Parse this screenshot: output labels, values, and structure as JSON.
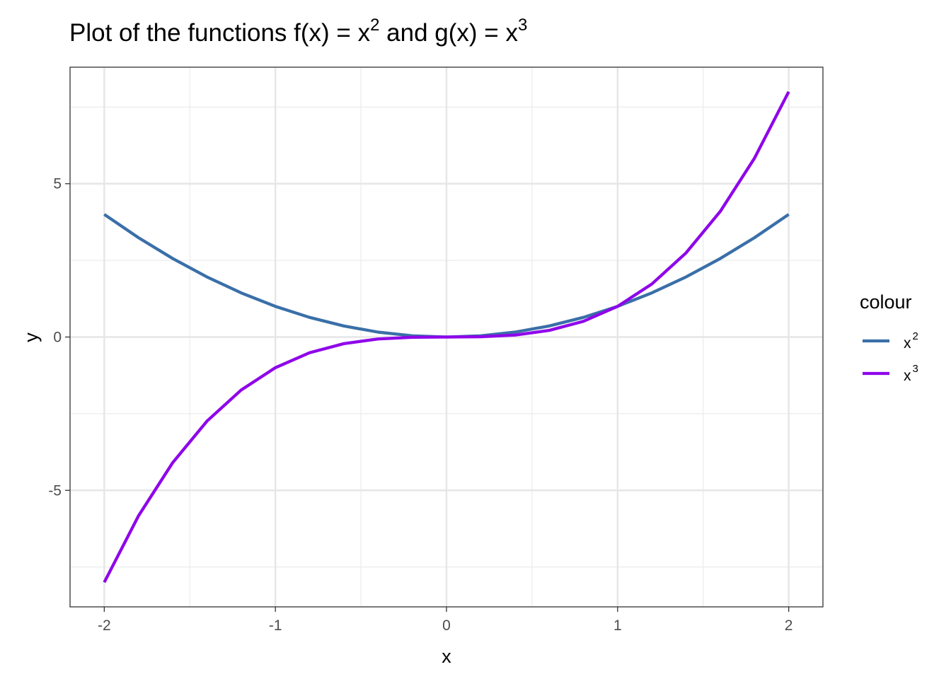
{
  "chart_data": {
    "type": "line",
    "title": {
      "part1": "Plot of the functions f",
      "part2": "(x) = x",
      "exp1": "2",
      "part3": " and g",
      "part4": "(x) = x",
      "exp2": "3"
    },
    "xlabel": "x",
    "ylabel": "y",
    "xlim": [
      -2.2,
      2.2
    ],
    "ylim": [
      -8.8,
      8.8
    ],
    "x_ticks": [
      -2,
      -1,
      0,
      1,
      2
    ],
    "x_tick_labels": [
      "-2",
      "-1",
      "0",
      "1",
      "2"
    ],
    "y_ticks": [
      -5,
      0,
      5
    ],
    "y_tick_labels": [
      "-5",
      "0",
      "5"
    ],
    "x_minor_ticks": [
      -1.5,
      -0.5,
      0.5,
      1.5
    ],
    "y_minor_ticks": [
      -7.5,
      -2.5,
      2.5,
      7.5
    ],
    "grid": true,
    "legend": {
      "title": "colour",
      "placement": "right",
      "entries": [
        {
          "base": "x",
          "exp": "2",
          "color": "#3a6fa8"
        },
        {
          "base": "x",
          "exp": "3",
          "color": "#8f06ea"
        }
      ]
    },
    "series": [
      {
        "color": "#3a6fa8",
        "x": [
          -2,
          -1.8,
          -1.6,
          -1.4,
          -1.2,
          -1,
          -0.8,
          -0.6,
          -0.4,
          -0.2,
          0,
          0.2,
          0.4,
          0.6,
          0.8,
          1,
          1.2,
          1.4,
          1.6,
          1.8,
          2
        ],
        "y": [
          4,
          3.24,
          2.56,
          1.96,
          1.44,
          1,
          0.64,
          0.36,
          0.16,
          0.04,
          0,
          0.04,
          0.16,
          0.36,
          0.64,
          1,
          1.44,
          1.96,
          2.56,
          3.24,
          4
        ]
      },
      {
        "color": "#8f06ea",
        "x": [
          -2,
          -1.8,
          -1.6,
          -1.4,
          -1.2,
          -1,
          -0.8,
          -0.6,
          -0.4,
          -0.2,
          0,
          0.2,
          0.4,
          0.6,
          0.8,
          1,
          1.2,
          1.4,
          1.6,
          1.8,
          2
        ],
        "y": [
          -8,
          -5.832,
          -4.096,
          -2.744,
          -1.728,
          -1,
          -0.512,
          -0.216,
          -0.064,
          -0.008,
          0,
          0.008,
          0.064,
          0.216,
          0.512,
          1,
          1.728,
          2.744,
          4.096,
          5.832,
          8
        ]
      }
    ]
  }
}
